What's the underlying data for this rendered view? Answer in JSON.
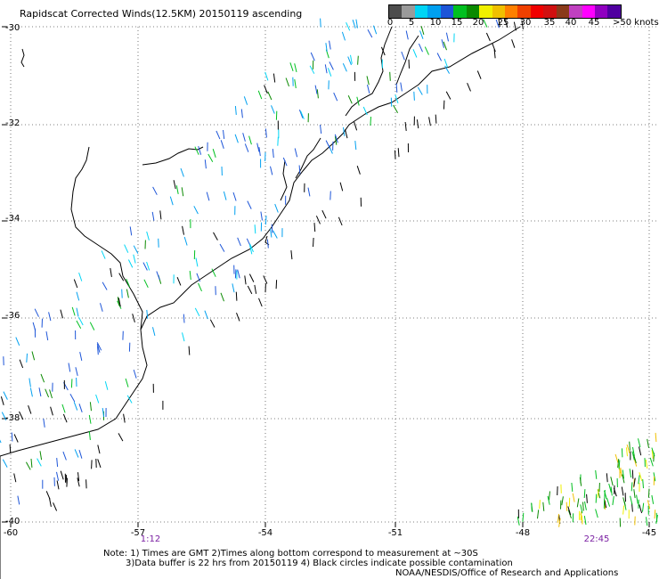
{
  "title": "Rapidscat Corrected Winds(12.5KM) 20150119 ascending",
  "axes": {
    "lat_labels": [
      "-30",
      "-32",
      "-34",
      "-36",
      "-38",
      "-40"
    ],
    "lon_labels": [
      "-60",
      "-57",
      "-54",
      "-51",
      "-48",
      "-45"
    ]
  },
  "pass_times": [
    "1:12",
    "22:45"
  ],
  "legend": {
    "labels": [
      "0",
      "5",
      "10",
      "15",
      "20",
      "25",
      "30",
      "35",
      "40",
      "45"
    ],
    "units": ">50 knots",
    "colors": [
      "#4d4d4d",
      "#9a9a9a",
      "#00d5f5",
      "#00a0f0",
      "#1d55d8",
      "#00c020",
      "#0a8a00",
      "#f0f000",
      "#f0c000",
      "#ff8000",
      "#f04000",
      "#f00000",
      "#d01010",
      "#8a3a1a",
      "#c040c0",
      "#ff00ff",
      "#9000c0",
      "#5000a0"
    ]
  },
  "notes": {
    "line1": "Note: 1) Times are GMT 2)Times along bottom correspond to measurement at ~30S",
    "line2": "3)Data buffer is 22 hrs from 20150119 4) Black circles indicate possible contamination",
    "line3": "NOAA/NESDIS/Office of Research and Applications"
  }
}
